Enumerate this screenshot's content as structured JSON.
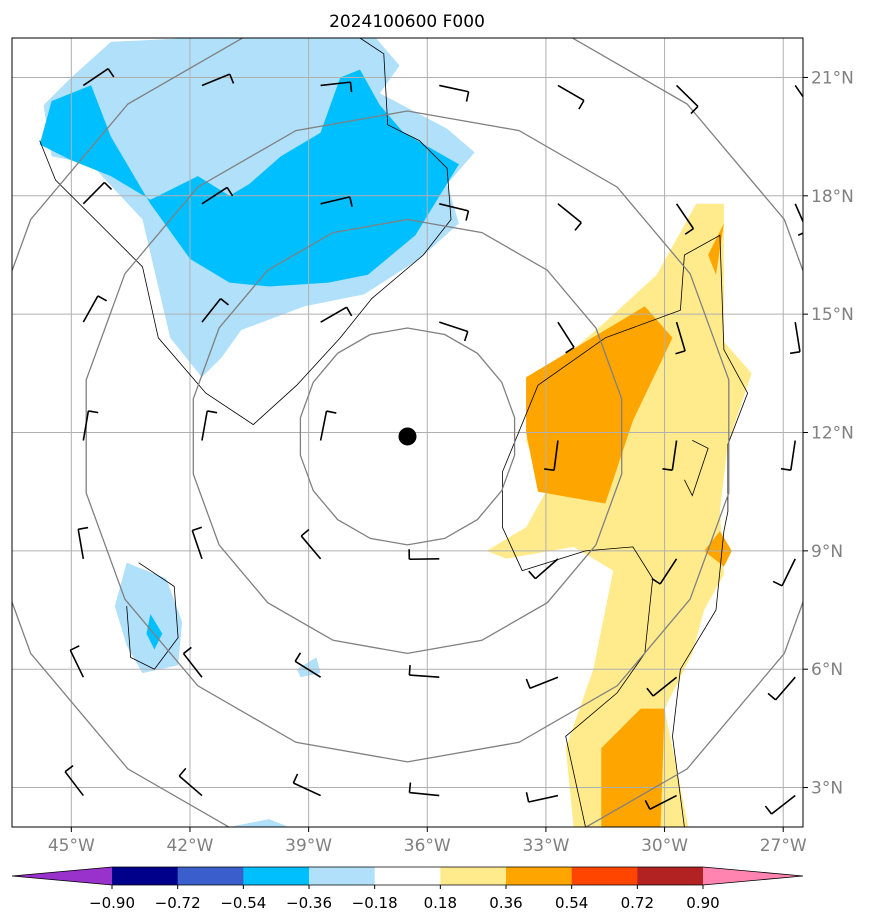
{
  "chart_data": {
    "type": "contour-map",
    "title": "2024100600 F000",
    "xlim": [
      -46.5,
      -26.5
    ],
    "ylim": [
      2.0,
      22.0
    ],
    "x_ticks": [
      {
        "value": -45,
        "label": "45°W"
      },
      {
        "value": -42,
        "label": "42°W"
      },
      {
        "value": -39,
        "label": "39°W"
      },
      {
        "value": -36,
        "label": "36°W"
      },
      {
        "value": -33,
        "label": "33°W"
      },
      {
        "value": -30,
        "label": "30°W"
      },
      {
        "value": -27,
        "label": "27°W"
      }
    ],
    "y_ticks": [
      {
        "value": 3,
        "label": "3°N"
      },
      {
        "value": 6,
        "label": "6°N"
      },
      {
        "value": 9,
        "label": "9°N"
      },
      {
        "value": 12,
        "label": "12°N"
      },
      {
        "value": 15,
        "label": "15°N"
      },
      {
        "value": 18,
        "label": "18°N"
      },
      {
        "value": 21,
        "label": "21°N"
      }
    ],
    "grid": true,
    "center": {
      "lon": -36.5,
      "lat": 11.9
    },
    "range_ring_radii_deg": [
      2.75,
      5.5,
      8.25,
      11.0
    ],
    "colorbar": {
      "levels": [
        -0.9,
        -0.72,
        -0.54,
        -0.36,
        -0.18,
        0.18,
        0.36,
        0.54,
        0.72,
        0.9
      ],
      "tick_labels": [
        "−0.90",
        "−0.72",
        "−0.54",
        "−0.36",
        "−0.18",
        "0.18",
        "0.36",
        "0.54",
        "0.72",
        "0.90"
      ],
      "colors": [
        "#9932cc",
        "#00008b",
        "#3a5fcd",
        "#00bfff",
        "#b0e0fa",
        "#ffffff",
        "#ffeb8c",
        "#ffa500",
        "#ff4500",
        "#b22222",
        "#ff85b0"
      ],
      "extend": "both"
    },
    "shaded_regions": [
      {
        "level": "-0.36 to -0.18",
        "color": "#b0e0fa",
        "polygon": [
          [
            -45.0,
            21.0
          ],
          [
            -44.0,
            21.9
          ],
          [
            -42.0,
            22.0
          ],
          [
            -40.0,
            22.0
          ],
          [
            -39.7,
            21.3
          ],
          [
            -40.6,
            21.2
          ],
          [
            -40.7,
            22.0
          ],
          [
            -38.4,
            22.0
          ],
          [
            -37.3,
            22.0
          ],
          [
            -36.7,
            21.3
          ],
          [
            -37.2,
            20.6
          ],
          [
            -35.5,
            19.7
          ],
          [
            -34.8,
            19.1
          ],
          [
            -35.5,
            18.3
          ],
          [
            -35.2,
            17.3
          ],
          [
            -36.2,
            16.4
          ],
          [
            -37.6,
            15.5
          ],
          [
            -39.1,
            15.2
          ],
          [
            -40.7,
            14.6
          ],
          [
            -41.2,
            13.9
          ],
          [
            -41.7,
            13.4
          ],
          [
            -42.5,
            14.4
          ],
          [
            -43.2,
            17.4
          ],
          [
            -44.5,
            18.8
          ],
          [
            -45.5,
            19.0
          ],
          [
            -45.7,
            20.3
          ]
        ]
      },
      {
        "level": "-0.54 to -0.36",
        "color": "#00bfff",
        "polygon": [
          [
            -45.5,
            20.4
          ],
          [
            -44.5,
            20.8
          ],
          [
            -44.0,
            19.5
          ],
          [
            -43.0,
            17.8
          ],
          [
            -42.0,
            16.4
          ],
          [
            -41.0,
            15.8
          ],
          [
            -40.0,
            15.7
          ],
          [
            -38.5,
            15.8
          ],
          [
            -37.5,
            16.0
          ],
          [
            -36.3,
            17.0
          ],
          [
            -35.2,
            18.8
          ],
          [
            -36.6,
            19.6
          ],
          [
            -37.2,
            20.3
          ],
          [
            -37.7,
            21.2
          ],
          [
            -38.2,
            21.0
          ],
          [
            -38.7,
            19.6
          ],
          [
            -39.7,
            19.0
          ],
          [
            -40.5,
            18.3
          ],
          [
            -41.0,
            18.0
          ],
          [
            -41.8,
            18.5
          ],
          [
            -43.0,
            17.9
          ],
          [
            -44.0,
            18.5
          ],
          [
            -45.0,
            18.9
          ],
          [
            -45.8,
            19.3
          ]
        ]
      },
      {
        "level": "-0.36 to -0.18",
        "color": "#b0e0fa",
        "polygon": [
          [
            -43.6,
            8.7
          ],
          [
            -42.6,
            8.3
          ],
          [
            -42.2,
            7.2
          ],
          [
            -42.3,
            6.1
          ],
          [
            -43.2,
            5.9
          ],
          [
            -43.6,
            6.6
          ],
          [
            -43.9,
            7.6
          ]
        ]
      },
      {
        "level": "-0.54 to -0.36",
        "color": "#00bfff",
        "polygon": [
          [
            -43.0,
            7.4
          ],
          [
            -42.7,
            6.9
          ],
          [
            -42.9,
            6.5
          ],
          [
            -43.1,
            6.9
          ]
        ]
      },
      {
        "level": "-0.36 to -0.18",
        "color": "#b0e0fa",
        "polygon": [
          [
            -39.3,
            6.0
          ],
          [
            -38.8,
            6.3
          ],
          [
            -38.7,
            5.9
          ],
          [
            -39.2,
            5.8
          ]
        ]
      },
      {
        "level": "-0.36 to -0.18",
        "color": "#b0e0fa",
        "polygon": [
          [
            -41.0,
            2.0
          ],
          [
            -40.0,
            2.2
          ],
          [
            -39.5,
            2.0
          ]
        ]
      },
      {
        "level": "0.18 to 0.36",
        "color": "#ffeb8c",
        "polygon": [
          [
            -34.5,
            9.0
          ],
          [
            -33.5,
            9.6
          ],
          [
            -33.0,
            10.5
          ],
          [
            -33.5,
            11.8
          ],
          [
            -33.0,
            13.5
          ],
          [
            -31.5,
            14.8
          ],
          [
            -30.2,
            16.0
          ],
          [
            -29.2,
            17.8
          ],
          [
            -28.5,
            17.8
          ],
          [
            -28.5,
            16.0
          ],
          [
            -28.5,
            14.3
          ],
          [
            -27.8,
            13.5
          ],
          [
            -28.4,
            11.7
          ],
          [
            -28.6,
            10.0
          ],
          [
            -28.5,
            8.4
          ],
          [
            -29.0,
            7.5
          ],
          [
            -29.3,
            6.4
          ],
          [
            -30.0,
            5.0
          ],
          [
            -29.4,
            2.0
          ],
          [
            -32.3,
            2.0
          ],
          [
            -32.5,
            4.0
          ],
          [
            -31.8,
            6.0
          ],
          [
            -31.3,
            8.5
          ],
          [
            -32.3,
            9.1
          ],
          [
            -34.0,
            8.8
          ]
        ]
      },
      {
        "level": "0.36 to 0.54",
        "color": "#ffa500",
        "polygon": [
          [
            -33.5,
            13.4
          ],
          [
            -32.0,
            14.3
          ],
          [
            -30.5,
            15.2
          ],
          [
            -29.8,
            14.4
          ],
          [
            -30.8,
            12.3
          ],
          [
            -31.5,
            10.2
          ],
          [
            -33.2,
            10.5
          ],
          [
            -33.5,
            12.0
          ]
        ]
      },
      {
        "level": "0.36 to 0.54",
        "color": "#ffa500",
        "polygon": [
          [
            -28.7,
            16.0
          ],
          [
            -28.9,
            16.5
          ],
          [
            -28.5,
            17.3
          ]
        ]
      },
      {
        "level": "0.36 to 0.54",
        "color": "#ffa500",
        "polygon": [
          [
            -28.6,
            9.5
          ],
          [
            -29.0,
            9.0
          ],
          [
            -28.5,
            8.6
          ],
          [
            -28.3,
            9.0
          ]
        ]
      },
      {
        "level": "0.36 to 0.54",
        "color": "#ffa500",
        "polygon": [
          [
            -30.6,
            5.0
          ],
          [
            -30.0,
            5.0
          ],
          [
            -30.1,
            2.0
          ],
          [
            -31.6,
            2.0
          ],
          [
            -31.6,
            4.0
          ]
        ]
      }
    ],
    "coastline": [
      [
        [
          -45.8,
          19.4
        ],
        [
          -45.4,
          18.4
        ],
        [
          -43.2,
          16.2
        ],
        [
          -42.8,
          14.4
        ],
        [
          -41.6,
          13.0
        ],
        [
          -40.4,
          12.2
        ],
        [
          -39.3,
          13.2
        ],
        [
          -38.2,
          14.4
        ],
        [
          -37.4,
          15.4
        ],
        [
          -36.1,
          16.5
        ],
        [
          -35.4,
          17.4
        ],
        [
          -35.5,
          18.7
        ],
        [
          -36.2,
          19.4
        ],
        [
          -37.0,
          19.8
        ],
        [
          -37.1,
          21.6
        ],
        [
          -37.7,
          22.0
        ]
      ],
      [
        [
          -43.3,
          8.7
        ],
        [
          -42.4,
          8.1
        ],
        [
          -42.3,
          6.8
        ],
        [
          -42.9,
          6.0
        ],
        [
          -43.5,
          6.3
        ],
        [
          -43.6,
          7.6
        ]
      ],
      [
        [
          -34.1,
          11.0
        ],
        [
          -33.2,
          13.2
        ],
        [
          -31.5,
          14.4
        ],
        [
          -29.6,
          15.1
        ],
        [
          -29.5,
          16.5
        ],
        [
          -28.6,
          17.0
        ],
        [
          -28.5,
          14.1
        ],
        [
          -27.9,
          13.0
        ],
        [
          -28.4,
          11.7
        ],
        [
          -28.4,
          10.0
        ],
        [
          -28.5,
          9.5
        ],
        [
          -28.7,
          7.5
        ],
        [
          -29.6,
          6.0
        ],
        [
          -29.8,
          4.3
        ],
        [
          -29.5,
          2.0
        ]
      ],
      [
        [
          -34.1,
          11.0
        ],
        [
          -34.1,
          9.6
        ],
        [
          -33.6,
          8.5
        ],
        [
          -32.0,
          9.0
        ],
        [
          -30.8,
          9.1
        ],
        [
          -30.3,
          8.3
        ],
        [
          -30.5,
          6.4
        ],
        [
          -31.2,
          5.4
        ],
        [
          -32.5,
          4.3
        ],
        [
          -32.0,
          2.0
        ]
      ],
      [
        [
          -29.3,
          11.8
        ],
        [
          -28.9,
          11.6
        ],
        [
          -29.3,
          10.4
        ],
        [
          -29.5,
          10.8
        ]
      ]
    ],
    "wind_barb_lons": [
      -45,
      -42,
      -39,
      -36,
      -33,
      -30,
      -27
    ],
    "wind_barb_lats": [
      21,
      18,
      15,
      12,
      9,
      6,
      3
    ],
    "center_marker": {
      "lon": -36.5,
      "lat": 11.9
    }
  }
}
